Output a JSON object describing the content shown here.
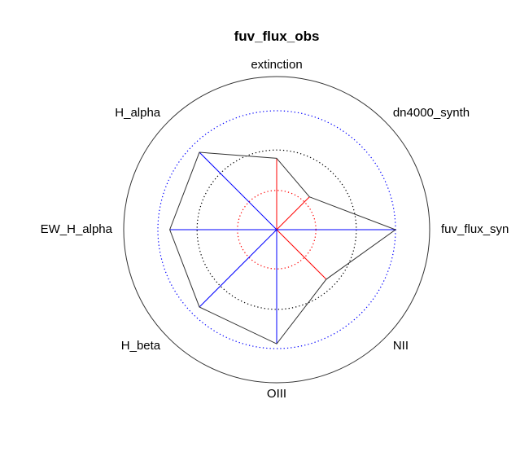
{
  "chart_data": {
    "type": "radar",
    "title": "fuv_flux_obs",
    "axes": [
      "extinction",
      "dn4000_synth",
      "fuv_flux_syn",
      "NII",
      "OIII",
      "H_beta",
      "EW_H_alpha",
      "H_alpha"
    ],
    "values": [
      0.6,
      0.39,
      1.0,
      0.59,
      0.96,
      0.92,
      0.9,
      0.92
    ],
    "spoke_colors": [
      "#ff0000",
      "#ff0000",
      "#0000ff",
      "#ff0000",
      "#0000ff",
      "#0000ff",
      "#0000ff",
      "#0000ff"
    ],
    "rings": [
      0.33,
      0.67,
      1.0
    ],
    "ring_colors": [
      "#ff0000",
      "#000000",
      "#0000ff"
    ],
    "outer_circle": true,
    "grid": "dotted",
    "legend": "none"
  }
}
